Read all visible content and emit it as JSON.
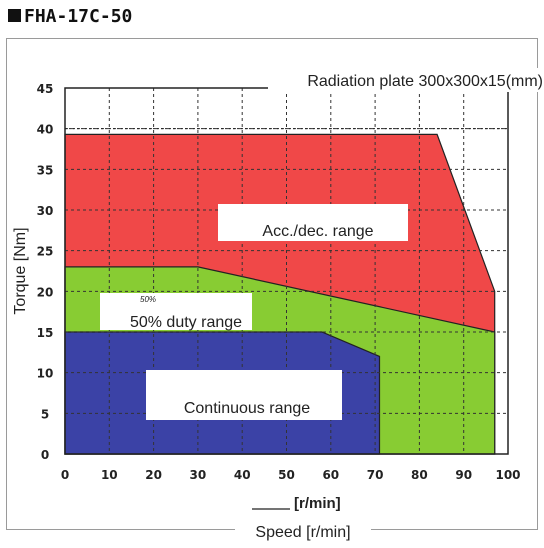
{
  "title": "FHA-17C-50",
  "note_top": "Radiation plate 300x300x15(mm)",
  "chart_data": {
    "type": "area",
    "title": "FHA-17C-50",
    "xlabel": "Speed [r/min]",
    "xlabel_unit": "[r/min]",
    "ylabel": "Torque [Nm]",
    "xlim": [
      0,
      100
    ],
    "ylim": [
      0,
      45
    ],
    "xticks": [
      "0",
      "10",
      "20",
      "30",
      "40",
      "50",
      "60",
      "70",
      "80",
      "90",
      "100"
    ],
    "yticks": [
      "0",
      "5",
      "10",
      "15",
      "20",
      "25",
      "30",
      "35",
      "40",
      "45"
    ],
    "grid": true,
    "series": [
      {
        "name": "Acc./dec. range",
        "color": "#f04848",
        "x": [
          0,
          84,
          97,
          97,
          0
        ],
        "y": [
          39.3,
          39.3,
          20,
          0,
          0
        ]
      },
      {
        "name": "50% duty range",
        "color": "#88cc33",
        "x": [
          0,
          30,
          97,
          97,
          0
        ],
        "y": [
          23,
          23,
          15,
          0,
          0
        ]
      },
      {
        "name": "Continuous range",
        "color": "#3b42a6",
        "x": [
          0,
          58,
          71,
          71,
          0
        ],
        "y": [
          15,
          15,
          12,
          0,
          0
        ]
      }
    ],
    "reference_line": {
      "y": 40
    },
    "annotations": [
      "Acc./dec. range",
      "50% duty range",
      "Continuous range",
      "50%"
    ]
  }
}
